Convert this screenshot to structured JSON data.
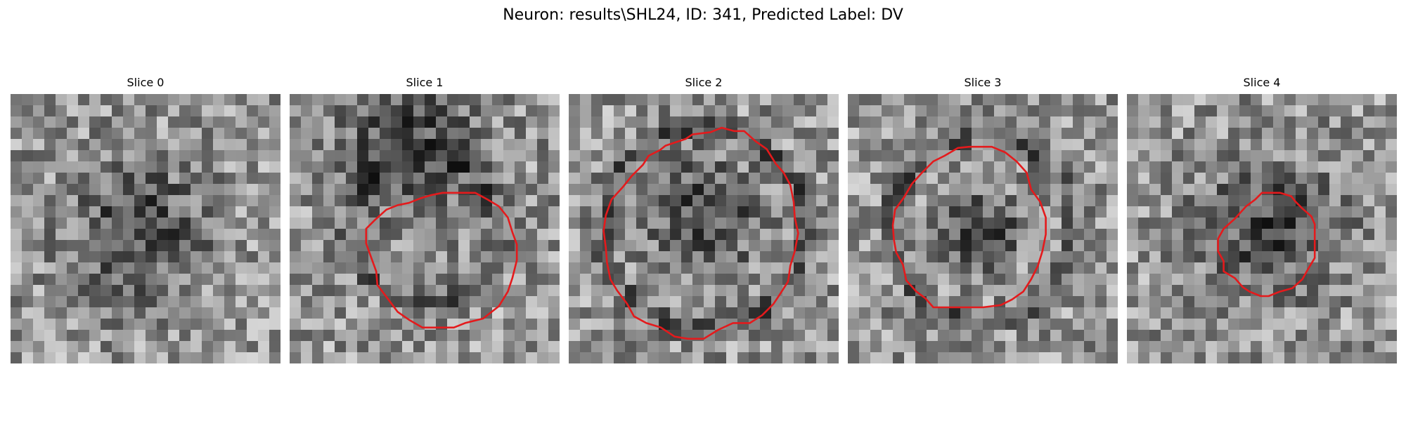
{
  "figure": {
    "title": "Neuron: results\\SHL24, ID: 341, Predicted Label: DV"
  },
  "slices": [
    {
      "title": "Slice 0",
      "has_contour": false,
      "seed": 11,
      "ring_radius": 0.0,
      "dark_blob": [
        0.47,
        0.5,
        0.17
      ],
      "contour": []
    },
    {
      "title": "Slice 1",
      "has_contour": true,
      "seed": 23,
      "ring_radius": 0.55,
      "dark_blob": [
        0.44,
        0.18,
        0.18
      ],
      "contour": [
        [
          14.6,
          8.8
        ],
        [
          16.5,
          8.8
        ],
        [
          17.6,
          9.4
        ],
        [
          18.6,
          10.0
        ],
        [
          19.4,
          11.0
        ],
        [
          19.8,
          12.3
        ],
        [
          20.2,
          13.4
        ],
        [
          20.2,
          14.8
        ],
        [
          19.8,
          16.4
        ],
        [
          19.4,
          17.6
        ],
        [
          18.6,
          18.9
        ],
        [
          17.2,
          20.0
        ],
        [
          15.6,
          20.4
        ],
        [
          14.6,
          20.8
        ],
        [
          13.1,
          20.8
        ],
        [
          11.8,
          20.8
        ],
        [
          10.6,
          20.1
        ],
        [
          9.6,
          19.4
        ],
        [
          8.7,
          18.2
        ],
        [
          7.8,
          17.0
        ],
        [
          7.7,
          15.8
        ],
        [
          7.3,
          14.7
        ],
        [
          6.8,
          13.3
        ],
        [
          6.8,
          12.0
        ],
        [
          7.6,
          11.2
        ],
        [
          8.6,
          10.3
        ],
        [
          9.6,
          9.9
        ],
        [
          10.6,
          9.7
        ],
        [
          11.6,
          9.3
        ],
        [
          12.6,
          9.0
        ],
        [
          13.6,
          8.8
        ]
      ]
    },
    {
      "title": "Slice 2",
      "has_contour": true,
      "seed": 37,
      "ring_radius": 0.75,
      "dark_blob": [
        0.5,
        0.45,
        0.15
      ],
      "contour": [
        [
          14.7,
          3.3
        ],
        [
          15.6,
          3.3
        ],
        [
          16.6,
          4.2
        ],
        [
          17.6,
          4.9
        ],
        [
          18.4,
          6.2
        ],
        [
          19.1,
          7.0
        ],
        [
          19.7,
          8.1
        ],
        [
          20.0,
          9.6
        ],
        [
          20.1,
          11.0
        ],
        [
          20.4,
          12.4
        ],
        [
          20.1,
          14.0
        ],
        [
          19.7,
          15.3
        ],
        [
          19.5,
          16.7
        ],
        [
          18.8,
          17.8
        ],
        [
          18.2,
          18.7
        ],
        [
          17.2,
          19.7
        ],
        [
          16.1,
          20.4
        ],
        [
          14.6,
          20.4
        ],
        [
          13.3,
          21.0
        ],
        [
          12.0,
          21.8
        ],
        [
          10.6,
          21.8
        ],
        [
          9.4,
          21.6
        ],
        [
          8.2,
          20.8
        ],
        [
          6.9,
          20.4
        ],
        [
          5.8,
          19.8
        ],
        [
          5.2,
          18.7
        ],
        [
          4.3,
          17.5
        ],
        [
          3.7,
          16.5
        ],
        [
          3.4,
          15.0
        ],
        [
          3.3,
          13.7
        ],
        [
          3.1,
          12.2
        ],
        [
          3.3,
          10.8
        ],
        [
          3.8,
          9.4
        ],
        [
          4.8,
          8.3
        ],
        [
          5.6,
          7.3
        ],
        [
          6.6,
          6.3
        ],
        [
          7.1,
          5.5
        ],
        [
          8.1,
          5.0
        ],
        [
          8.6,
          4.6
        ],
        [
          10.4,
          4.0
        ],
        [
          11.0,
          3.6
        ],
        [
          12.6,
          3.4
        ],
        [
          13.6,
          3.0
        ]
      ]
    },
    {
      "title": "Slice 3",
      "has_contour": true,
      "seed": 53,
      "ring_radius": 0.68,
      "dark_blob": [
        0.5,
        0.5,
        0.1
      ],
      "contour": [
        [
          10.8,
          4.7
        ],
        [
          12.8,
          4.7
        ],
        [
          14.0,
          5.2
        ],
        [
          15.0,
          6.0
        ],
        [
          15.9,
          7.0
        ],
        [
          16.3,
          8.5
        ],
        [
          17.1,
          9.6
        ],
        [
          17.6,
          11.0
        ],
        [
          17.6,
          12.5
        ],
        [
          17.3,
          14.0
        ],
        [
          16.9,
          15.3
        ],
        [
          16.3,
          16.5
        ],
        [
          15.6,
          17.6
        ],
        [
          14.6,
          18.3
        ],
        [
          13.6,
          18.8
        ],
        [
          12.0,
          19.0
        ],
        [
          10.6,
          19.0
        ],
        [
          9.0,
          19.0
        ],
        [
          7.6,
          19.0
        ],
        [
          6.9,
          18.2
        ],
        [
          6.1,
          17.6
        ],
        [
          5.2,
          16.6
        ],
        [
          4.9,
          15.2
        ],
        [
          4.3,
          14.1
        ],
        [
          4.1,
          13.0
        ],
        [
          4.0,
          11.7
        ],
        [
          4.2,
          10.3
        ],
        [
          5.0,
          9.2
        ],
        [
          5.7,
          8.0
        ],
        [
          6.6,
          7.0
        ],
        [
          7.6,
          6.0
        ],
        [
          8.6,
          5.5
        ],
        [
          9.8,
          4.8
        ]
      ]
    },
    {
      "title": "Slice 4",
      "has_contour": true,
      "seed": 71,
      "ring_radius": 0.0,
      "dark_blob": [
        0.53,
        0.5,
        0.17
      ],
      "contour": [
        [
          12.6,
          8.8
        ],
        [
          13.6,
          8.8
        ],
        [
          14.6,
          9.1
        ],
        [
          15.0,
          9.6
        ],
        [
          15.6,
          10.2
        ],
        [
          16.4,
          10.9
        ],
        [
          16.7,
          11.6
        ],
        [
          16.7,
          13.1
        ],
        [
          16.7,
          14.6
        ],
        [
          16.1,
          15.6
        ],
        [
          15.6,
          16.5
        ],
        [
          14.7,
          17.3
        ],
        [
          13.6,
          17.6
        ],
        [
          12.6,
          18.0
        ],
        [
          11.9,
          18.0
        ],
        [
          10.9,
          17.6
        ],
        [
          10.3,
          17.2
        ],
        [
          9.6,
          16.4
        ],
        [
          8.6,
          15.8
        ],
        [
          8.6,
          14.9
        ],
        [
          8.1,
          14.0
        ],
        [
          8.1,
          12.9
        ],
        [
          8.6,
          12.0
        ],
        [
          9.6,
          11.1
        ],
        [
          10.6,
          10.0
        ],
        [
          11.4,
          9.4
        ],
        [
          12.0,
          8.8
        ]
      ]
    }
  ],
  "colors": {
    "contour": "#e41a1c",
    "background": "#ffffff"
  }
}
